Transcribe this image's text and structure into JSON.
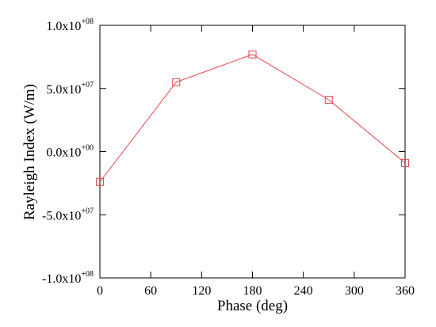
{
  "chart_data": {
    "type": "line",
    "title": "",
    "xlabel": "Phase (deg)",
    "ylabel": "Rayleigh Index (W/m)",
    "xlim": [
      0,
      360
    ],
    "ylim": [
      -100000000,
      100000000
    ],
    "x_ticks": [
      0,
      60,
      120,
      180,
      240,
      300,
      360
    ],
    "x_tick_labels": [
      "0",
      "60",
      "120",
      "180",
      "240",
      "300",
      "360"
    ],
    "y_ticks": [
      100000000,
      50000000,
      0,
      -50000000,
      -100000000
    ],
    "y_tick_labels": [
      {
        "mantissa": "1.0x10",
        "exponent": "+08"
      },
      {
        "mantissa": "5.0x10",
        "exponent": "+07"
      },
      {
        "mantissa": "0.0x10",
        "exponent": "+00"
      },
      {
        "mantissa": "-5.0x10",
        "exponent": "+07"
      },
      {
        "mantissa": "-1.0x10",
        "exponent": "+08"
      }
    ],
    "grid": false,
    "legend": "none",
    "series": [
      {
        "x": [
          0,
          90,
          180,
          270,
          360
        ],
        "y": [
          -24000000,
          55000000,
          77000000,
          41000000,
          -9000000
        ],
        "color": "#e8454d",
        "marker": "square-open"
      }
    ]
  }
}
